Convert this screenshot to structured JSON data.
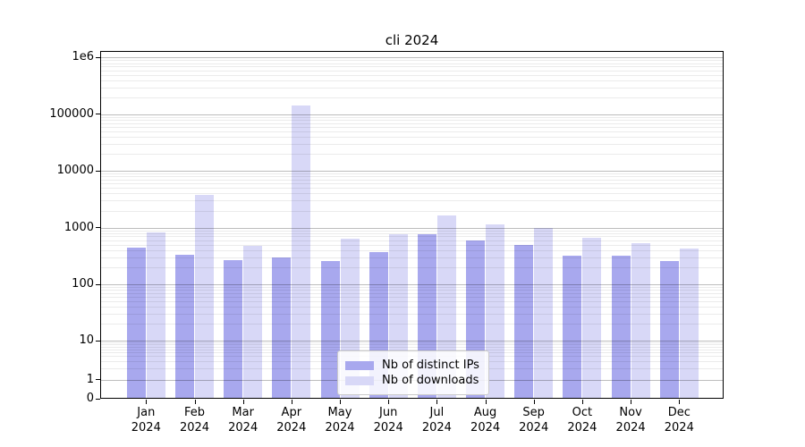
{
  "chart_data": {
    "type": "bar",
    "title": "cli 2024",
    "categories": [
      "Jan",
      "Feb",
      "Mar",
      "Apr",
      "May",
      "Jun",
      "Jul",
      "Aug",
      "Sep",
      "Oct",
      "Nov",
      "Dec"
    ],
    "category_year": "2024",
    "series": [
      {
        "name": "Nb of distinct IPs",
        "color": "#a8a8ee",
        "values": [
          450,
          335,
          270,
          300,
          260,
          365,
          775,
          585,
          495,
          320,
          320,
          260
        ]
      },
      {
        "name": "Nb of downloads",
        "color": "#d8d8f7",
        "values": [
          830,
          3800,
          475,
          141000,
          630,
          765,
          1640,
          1130,
          1000,
          660,
          540,
          430
        ]
      }
    ],
    "yscale": "log with linear segment below 1 (0 shown at axis bottom)",
    "ylim": [
      0,
      1260000
    ],
    "yticks": [
      {
        "label": "1e6",
        "value": 1000000
      },
      {
        "label": "100000",
        "value": 100000
      },
      {
        "label": "10000",
        "value": 10000
      },
      {
        "label": "1000",
        "value": 1000
      },
      {
        "label": "100",
        "value": 100
      },
      {
        "label": "10",
        "value": 10
      },
      {
        "label": "1",
        "value": 1
      },
      {
        "label": "0",
        "value": 0
      }
    ],
    "grid": "major and minor horizontal gridlines, drawn over bars",
    "legend_position": "lower center"
  }
}
